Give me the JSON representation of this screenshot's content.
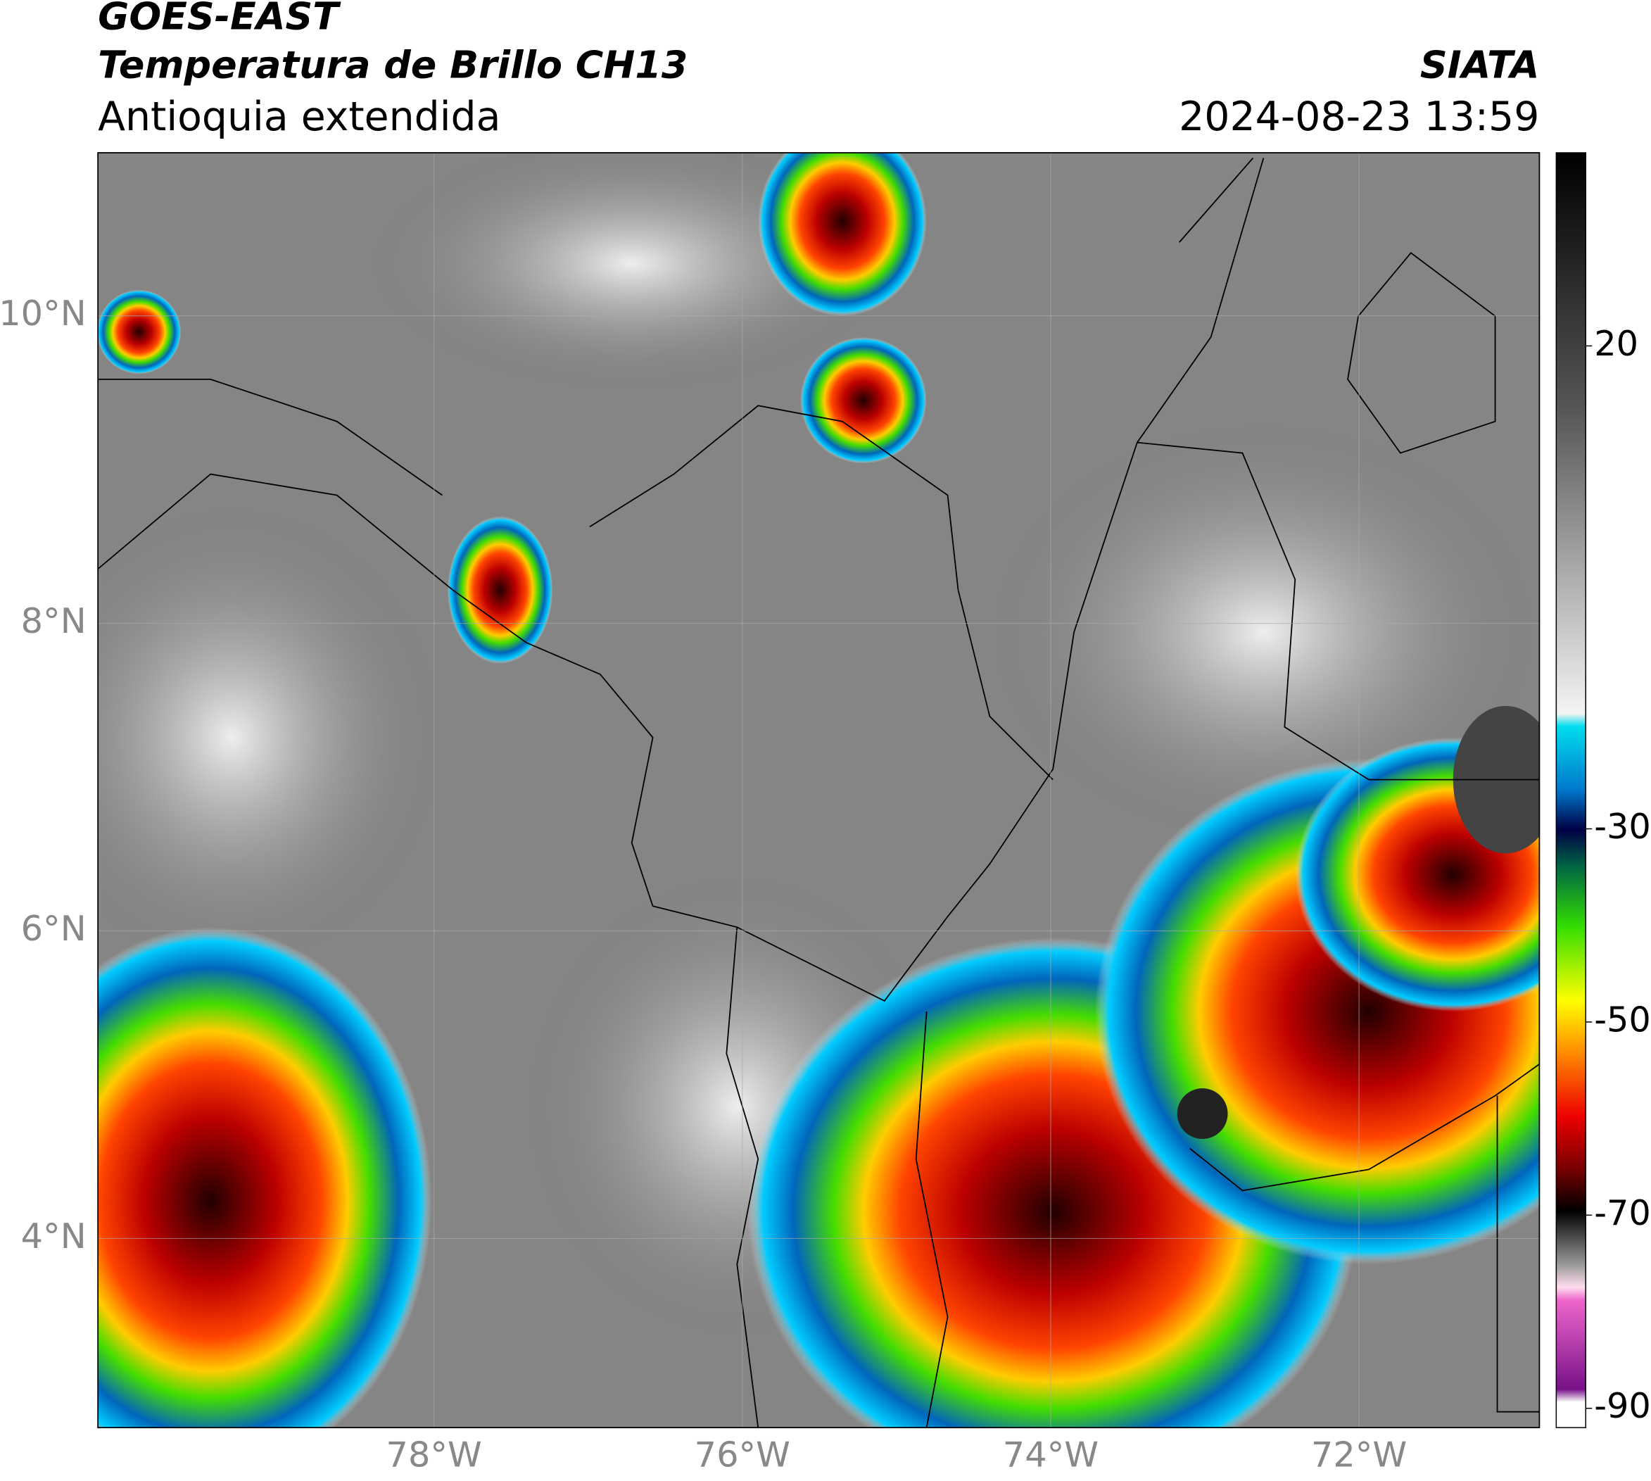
{
  "header": {
    "satellite": "GOES-EAST",
    "product": "Temperatura de Brillo CH13",
    "region": "Antioquia extendida",
    "source": "SIATA",
    "datetime": "2024-08-23 13:59"
  },
  "map": {
    "xlim": [
      -80.18,
      -70.83
    ],
    "ylim": [
      2.77,
      11.06
    ],
    "xticks": [
      {
        "value": -78,
        "label": "78°W"
      },
      {
        "value": -76,
        "label": "76°W"
      },
      {
        "value": -74,
        "label": "74°W"
      },
      {
        "value": -72,
        "label": "72°W"
      }
    ],
    "yticks": [
      {
        "value": 10,
        "label": "10°N"
      },
      {
        "value": 8,
        "label": "8°N"
      },
      {
        "value": 6,
        "label": "6°N"
      },
      {
        "value": 4,
        "label": "4°N"
      }
    ],
    "grid": true
  },
  "colorbar": {
    "clim": [
      -92,
      40
    ],
    "ticks": [
      20,
      -30,
      -50,
      -70,
      -90
    ]
  }
}
